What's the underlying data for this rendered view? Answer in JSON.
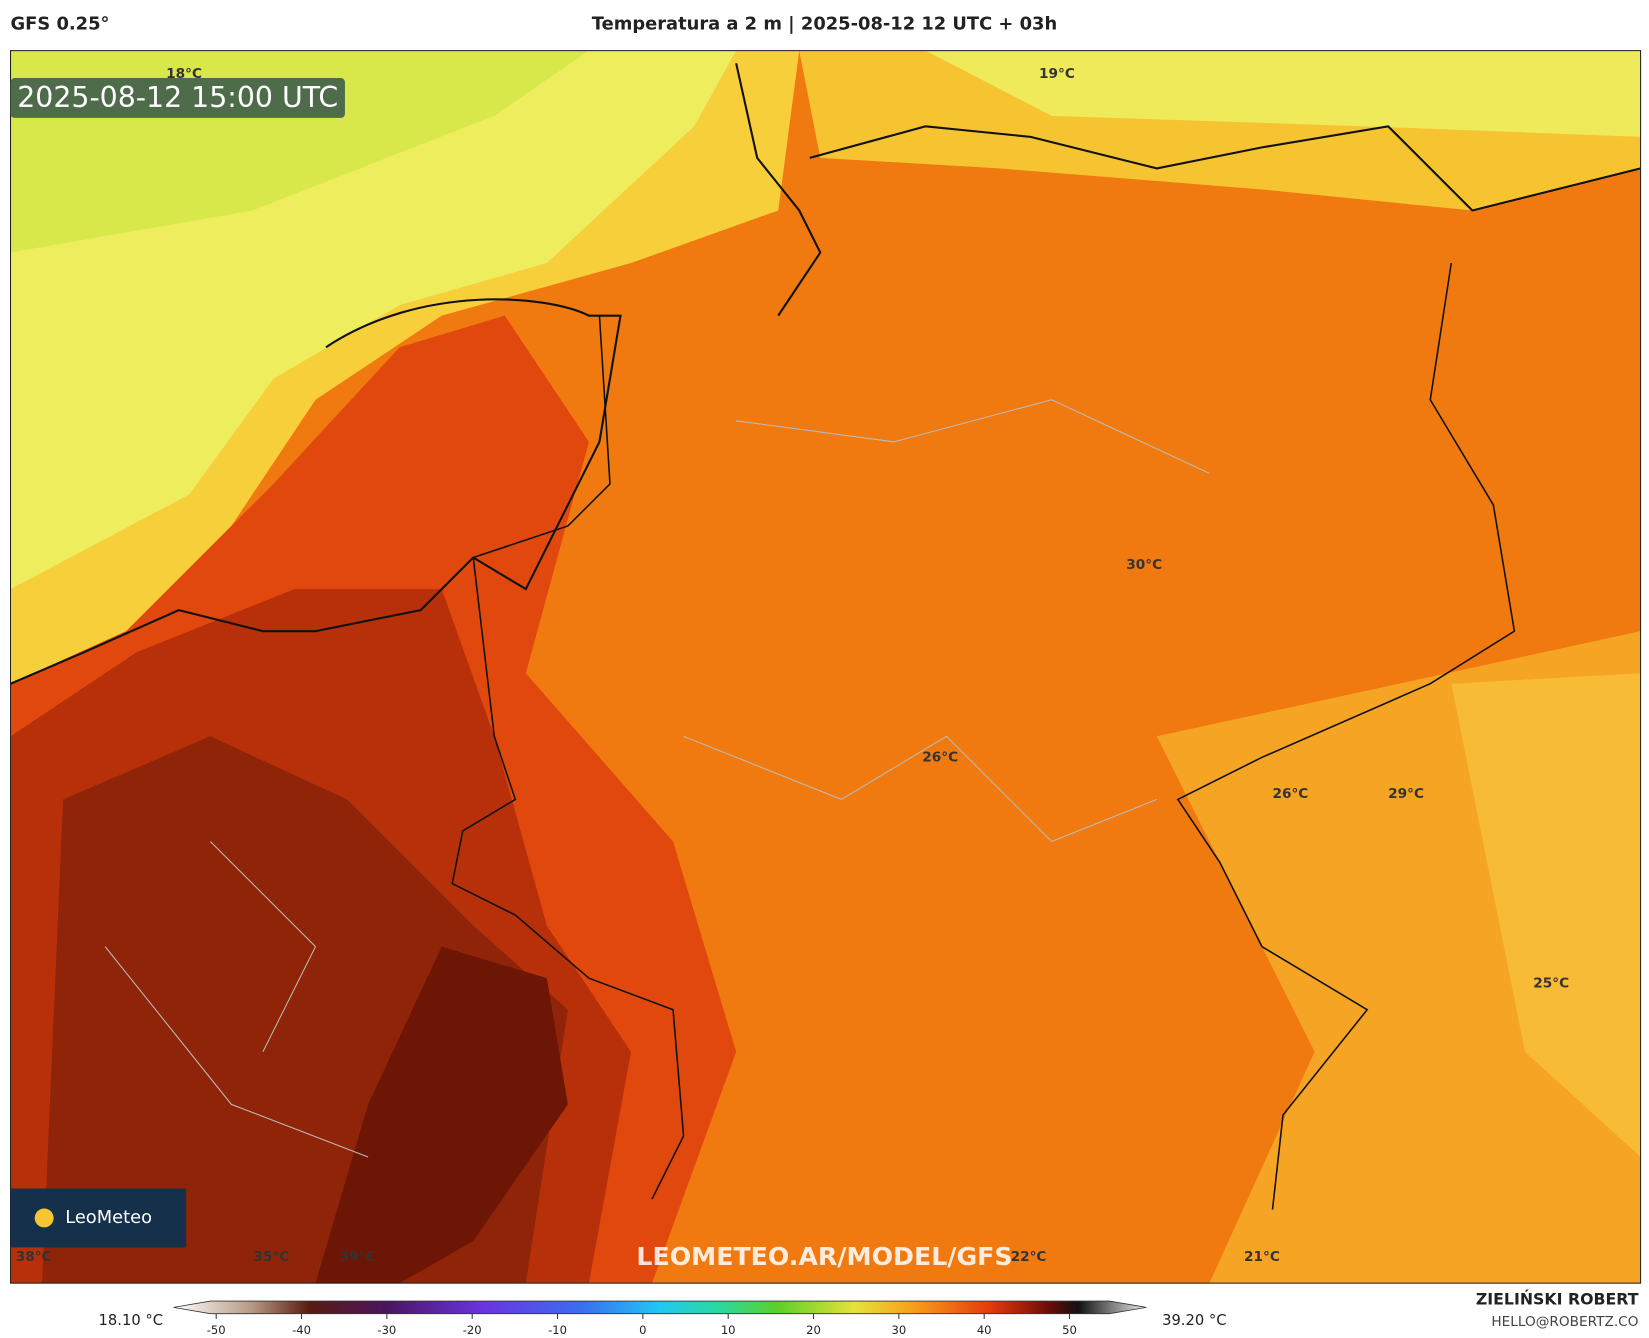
{
  "header": {
    "model": "GFS 0.25°",
    "title": "Temperatura a 2 m | 2025-08-12 12 UTC + 03h"
  },
  "timestamp": "2025-08-12 15:00 UTC",
  "map_labels": [
    "18°C",
    "19°C",
    "30°C",
    "26°C",
    "26°C",
    "29°C",
    "25°C",
    "38°C",
    "35°C",
    "39°C",
    "22°C",
    "21°C"
  ],
  "logo": "LeoMeteo",
  "watermark": "LEOMETEO.AR/MODEL/GFS",
  "colorbar": {
    "lim": [
      -55,
      59
    ],
    "ticks": [
      -50,
      -40,
      -30,
      -20,
      -10,
      0,
      10,
      20,
      30,
      40,
      50
    ],
    "min_label": "18.10 °C",
    "max_label": "39.20 °C"
  },
  "author": {
    "name": "ZIELIŃSKI ROBERT",
    "email": "HELLO@ROBERTZ.CO"
  }
}
